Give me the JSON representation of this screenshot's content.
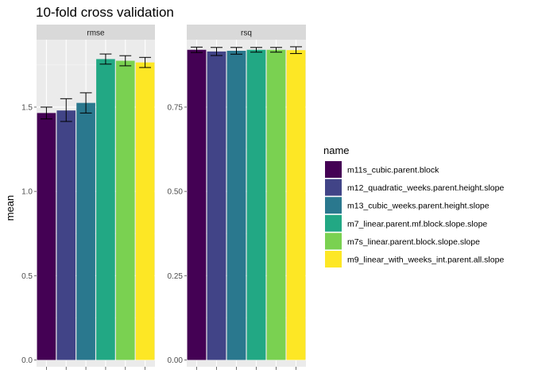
{
  "chart_data": {
    "type": "bar",
    "title": "10-fold cross validation",
    "xlabel": "",
    "ylabel": "mean",
    "categories": [
      "m11s_cubic.parent.block",
      "m12_quadratic_weeks.parent.height.slope",
      "m13_cubic_weeks.parent.height.slope",
      "m7_linear.parent.mf.block.slope.slope",
      "m7s_linear.parent.block.slope.slope",
      "m9_linear_with_weeks_int.parent.all.slope"
    ],
    "colors": [
      "#440154",
      "#414487",
      "#2a788e",
      "#22a884",
      "#7ad151",
      "#fde725"
    ],
    "legend_title": "name",
    "legend_position": "right",
    "grid": true,
    "panels": [
      {
        "name": "rmse",
        "ylim": [
          -0.04,
          1.9
        ],
        "ticks": [
          0.0,
          0.5,
          1.0,
          1.5
        ],
        "tick_labels": [
          "0.0",
          "0.5",
          "1.0",
          "1.5"
        ],
        "values": [
          1.465,
          1.48,
          1.525,
          1.785,
          1.775,
          1.765
        ],
        "err_low": [
          1.43,
          1.415,
          1.465,
          1.755,
          1.745,
          1.735
        ],
        "err_high": [
          1.5,
          1.55,
          1.585,
          1.815,
          1.805,
          1.795
        ]
      },
      {
        "name": "rsq",
        "ylim": [
          -0.02,
          0.95
        ],
        "ticks": [
          0.0,
          0.25,
          0.5,
          0.75
        ],
        "tick_labels": [
          "0.00",
          "0.25",
          "0.50",
          "0.75"
        ],
        "values": [
          0.92,
          0.915,
          0.917,
          0.92,
          0.92,
          0.919
        ],
        "err_low": [
          0.912,
          0.903,
          0.907,
          0.913,
          0.913,
          0.909
        ],
        "err_high": [
          0.928,
          0.927,
          0.927,
          0.927,
          0.927,
          0.929
        ]
      }
    ]
  }
}
